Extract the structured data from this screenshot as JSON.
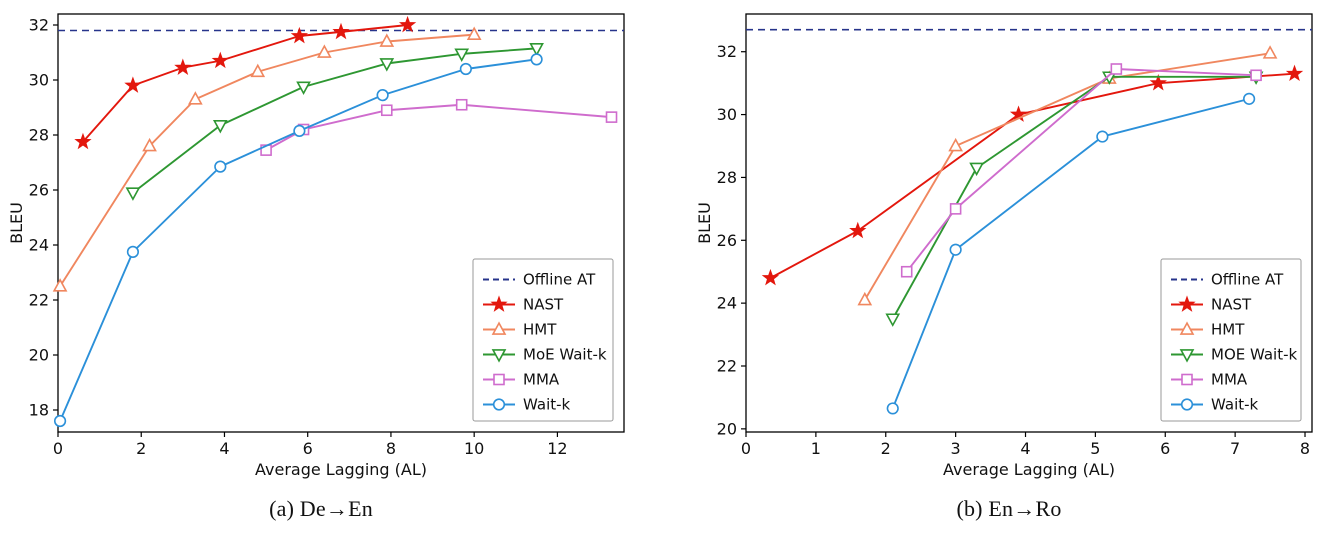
{
  "figure": {
    "captions": {
      "a": "(a)  De→En",
      "b": "(b)  En→Ro"
    }
  },
  "chart_data": [
    {
      "type": "line",
      "title": "",
      "xlabel": "Average Lagging (AL)",
      "ylabel": "BLEU",
      "xlim": [
        0,
        13.6
      ],
      "ylim": [
        17.2,
        32.4
      ],
      "xticks": [
        0,
        2,
        4,
        6,
        8,
        10,
        12
      ],
      "yticks": [
        18,
        20,
        22,
        24,
        26,
        28,
        30,
        32
      ],
      "grid": false,
      "legend_position": "lower right",
      "reference_line": {
        "label": "Offline AT",
        "value": 31.8,
        "color": "#27348b",
        "style": "dashed"
      },
      "series": [
        {
          "name": "NAST",
          "color": "#e3170d",
          "marker": "star",
          "x": [
            0.6,
            1.8,
            3.0,
            3.9,
            5.8,
            6.8,
            8.4
          ],
          "y": [
            27.75,
            29.8,
            30.45,
            30.7,
            31.6,
            31.75,
            32.0
          ]
        },
        {
          "name": "HMT",
          "color": "#f0875f",
          "marker": "triangle-up",
          "x": [
            0.05,
            2.2,
            3.3,
            4.8,
            6.4,
            7.9,
            10.0
          ],
          "y": [
            22.5,
            27.6,
            29.3,
            30.3,
            31.0,
            31.4,
            31.65
          ]
        },
        {
          "name": "MoE Wait-k",
          "color": "#2e9732",
          "marker": "triangle-down",
          "x": [
            1.8,
            3.9,
            5.9,
            7.9,
            9.7,
            11.5
          ],
          "y": [
            25.9,
            28.35,
            29.75,
            30.6,
            30.95,
            31.15
          ]
        },
        {
          "name": "MMA",
          "color": "#cf6ccd",
          "marker": "square",
          "x": [
            5.0,
            5.9,
            7.9,
            9.7,
            13.3
          ],
          "y": [
            27.45,
            28.2,
            28.9,
            29.1,
            28.65
          ]
        },
        {
          "name": "Wait-k",
          "color": "#2b90d9",
          "marker": "circle",
          "x": [
            0.05,
            1.8,
            3.9,
            5.8,
            7.8,
            9.8,
            11.5
          ],
          "y": [
            17.6,
            23.75,
            26.85,
            28.15,
            29.45,
            30.4,
            30.75
          ]
        }
      ]
    },
    {
      "type": "line",
      "title": "",
      "xlabel": "Average Lagging (AL)",
      "ylabel": "BLEU",
      "xlim": [
        0,
        8.1
      ],
      "ylim": [
        19.9,
        33.2
      ],
      "xticks": [
        0,
        1,
        2,
        3,
        4,
        5,
        6,
        7,
        8
      ],
      "yticks": [
        20,
        22,
        24,
        26,
        28,
        30,
        32
      ],
      "grid": false,
      "legend_position": "lower right",
      "reference_line": {
        "label": "Offline AT",
        "value": 32.7,
        "color": "#27348b",
        "style": "dashed"
      },
      "series": [
        {
          "name": "NAST",
          "color": "#e3170d",
          "marker": "star",
          "x": [
            0.35,
            1.6,
            3.9,
            5.9,
            7.85
          ],
          "y": [
            24.8,
            26.3,
            30.0,
            31.0,
            31.3
          ]
        },
        {
          "name": "HMT",
          "color": "#f0875f",
          "marker": "triangle-up",
          "x": [
            1.7,
            3.0,
            5.2,
            7.5
          ],
          "y": [
            24.1,
            29.0,
            31.15,
            31.95
          ]
        },
        {
          "name": "MOE Wait-k",
          "color": "#2e9732",
          "marker": "triangle-down",
          "x": [
            2.1,
            3.3,
            5.2,
            7.3
          ],
          "y": [
            23.5,
            28.3,
            31.2,
            31.2
          ]
        },
        {
          "name": "MMA",
          "color": "#cf6ccd",
          "marker": "square",
          "x": [
            2.3,
            3.0,
            5.3,
            7.3
          ],
          "y": [
            25.0,
            27.0,
            31.45,
            31.25
          ]
        },
        {
          "name": "Wait-k",
          "color": "#2b90d9",
          "marker": "circle",
          "x": [
            2.1,
            3.0,
            5.1,
            7.2
          ],
          "y": [
            20.65,
            25.7,
            29.3,
            30.5
          ]
        }
      ]
    }
  ]
}
